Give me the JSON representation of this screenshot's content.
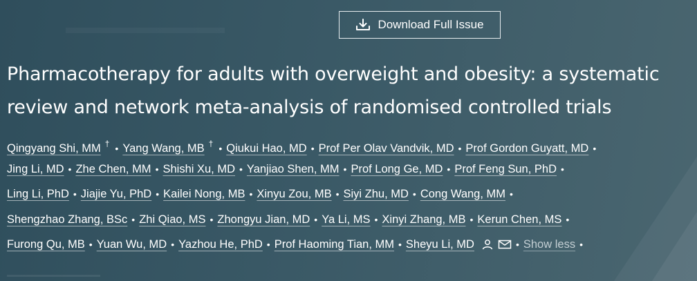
{
  "header": {
    "download_label": "Download Full Issue",
    "download_icon": "download-icon"
  },
  "article": {
    "title_line1": "Pharmacotherapy for adults with overweight and obesity: a systematic",
    "title_line2": "review and network meta-analysis of randomised controlled trials"
  },
  "authors": {
    "dagger": "†",
    "row1": [
      "Qingyang Shi, MM",
      "Yang Wang, MB",
      "Qiukui Hao, MD",
      "Prof Per Olav Vandvik, MD",
      "Prof Gordon Guyatt, MD"
    ],
    "row2": [
      "Jing Li, MD",
      "Zhe Chen, MM",
      "Shishi Xu, MD",
      "Yanjiao Shen, MM",
      "Prof Long Ge, MD",
      "Prof Feng Sun, PhD"
    ],
    "row3": [
      "Ling Li, PhD",
      "Jiajie Yu, PhD",
      "Kailei Nong, MB",
      "Xinyu Zou, MB",
      "Siyi Zhu, MD",
      "Cong Wang, MM"
    ],
    "row4": [
      "Shengzhao Zhang, BSc",
      "Zhi Qiao, MS",
      "Zhongyu Jian, MD",
      "Ya Li, MS",
      "Xinyi Zhang, MB",
      "Kerun Chen, MS"
    ],
    "row5": [
      "Furong Qu, MB",
      "Yuan Wu, MD",
      "Yazhou He, PhD",
      "Prof Haoming Tian, MM",
      "Sheyu Li, MD"
    ],
    "contact_icons": [
      "person-icon",
      "email-icon"
    ],
    "show_less_label": "Show less"
  }
}
